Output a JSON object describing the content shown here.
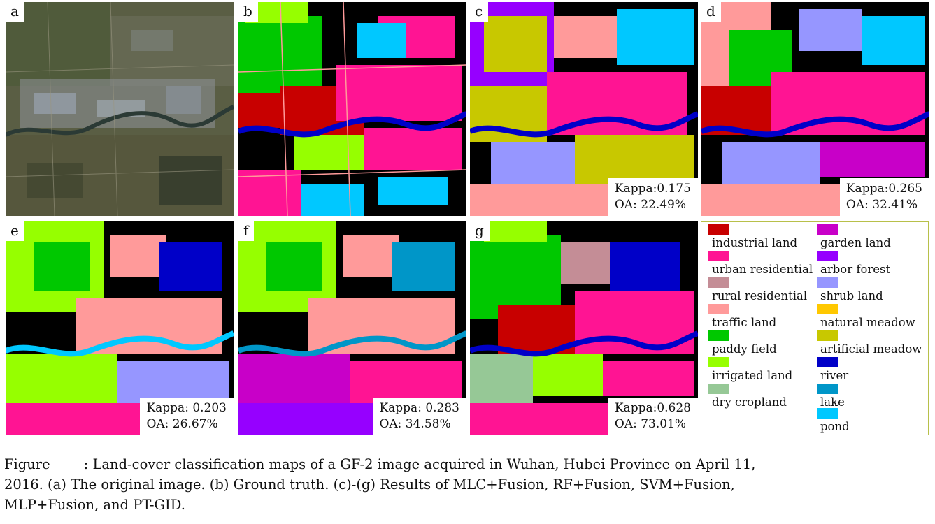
{
  "panels": [
    {
      "label": "a"
    },
    {
      "label": "b"
    },
    {
      "label": "c",
      "kappa": "Kappa:0.175",
      "oa": "OA: 22.49%"
    },
    {
      "label": "d",
      "kappa": "Kappa:0.265",
      "oa": "OA: 32.41%"
    },
    {
      "label": "e",
      "kappa": "Kappa: 0.203",
      "oa": "OA: 26.67%"
    },
    {
      "label": "f",
      "kappa": "Kappa: 0.283",
      "oa": "OA: 34.58%"
    },
    {
      "label": "g",
      "kappa": "Kappa:0.628",
      "oa": "OA: 73.01%"
    }
  ],
  "legend": {
    "items": [
      {
        "label": "industrial land",
        "color": "#c80000"
      },
      {
        "label": "urban residential",
        "color": "#ff1493"
      },
      {
        "label": "rural residential",
        "color": "#c48d96"
      },
      {
        "label": "traffic land",
        "color": "#ff9a9a"
      },
      {
        "label": "paddy field",
        "color": "#00c800"
      },
      {
        "label": "irrigated land",
        "color": "#96ff00"
      },
      {
        "label": "dry cropland",
        "color": "#96c896"
      },
      {
        "label": "garden land",
        "color": "#c800c8"
      },
      {
        "label": "arbor forest",
        "color": "#9600ff"
      },
      {
        "label": "shrub land",
        "color": "#9696ff"
      },
      {
        "label": "natural meadow",
        "color": "#ffc800"
      },
      {
        "label": "artificial meadow",
        "color": "#c8c800"
      },
      {
        "label": "river",
        "color": "#0000c8"
      },
      {
        "label": "lake",
        "color": "#0096c8"
      },
      {
        "label": "pond",
        "color": "#00c8ff"
      }
    ]
  },
  "caption": {
    "line1_start": "Figure",
    "line1_rest": ": Land-cover classification maps of a GF-2 image acquired in Wuhan, Hubei Province on April 11,",
    "line2": "2016. (a) The original image. (b) Ground truth. (c)-(g) Results of MLC+Fusion, RF+Fusion, SVM+Fusion,",
    "line3": "MLP+Fusion, and PT-GID."
  }
}
